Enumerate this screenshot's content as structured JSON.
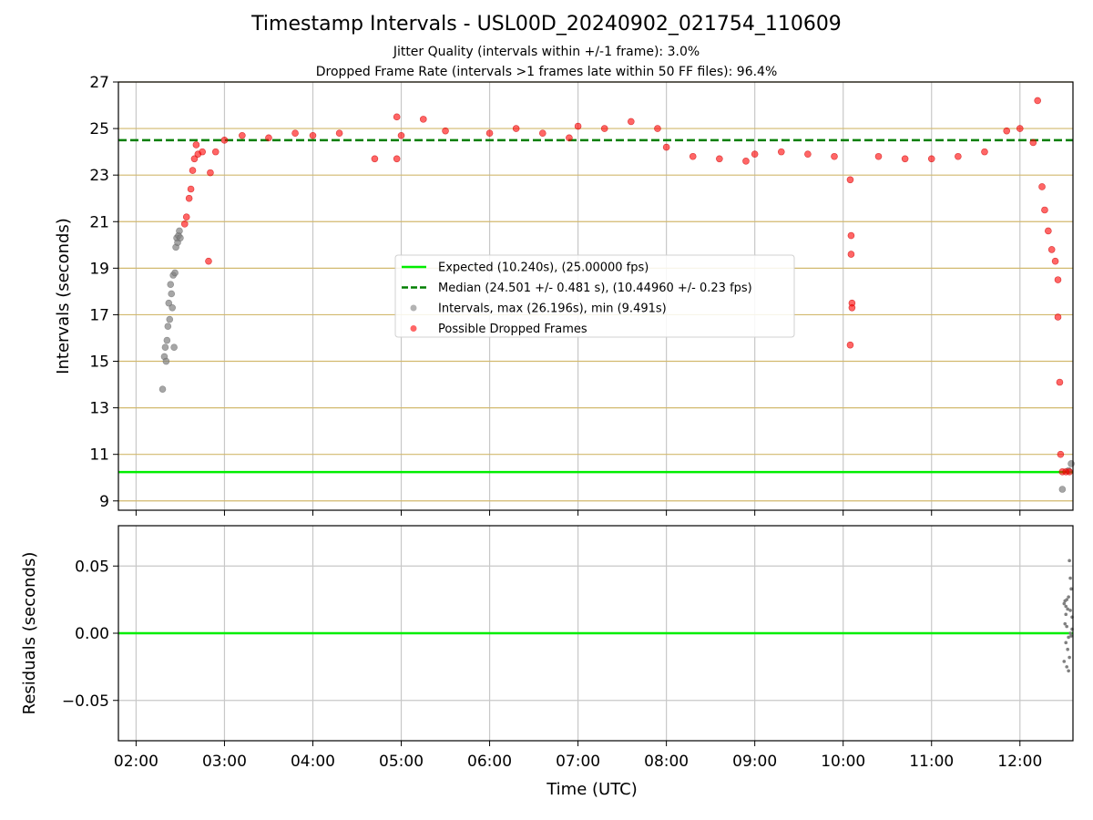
{
  "chart_data": [
    {
      "type": "scatter",
      "title": "Timestamp Intervals - USL00D_20240902_021754_110609",
      "subtitle_1": "Jitter Quality (intervals within +/-1 frame): 3.0%",
      "subtitle_2": "Dropped Frame Rate (intervals >1 frames late within 50 FF files): 96.4%",
      "ylabel": "Intervals (seconds)",
      "ylim": [
        8.6,
        27.0
      ],
      "yticks": [
        "27",
        "25",
        "23",
        "21",
        "19",
        "17",
        "15",
        "13",
        "11",
        "9"
      ],
      "ytick_values": [
        27,
        25,
        23,
        21,
        19,
        17,
        15,
        13,
        11,
        9
      ],
      "xlim_hours": [
        1.8,
        12.6
      ],
      "grid": true,
      "legend_position": "center",
      "legend": [
        {
          "label": "Expected (10.240s), (25.00000 fps)",
          "color": "#00ee00",
          "style": "solid"
        },
        {
          "label": "Median (24.501 +/- 0.481 s), (10.44960 +/- 0.23 fps)",
          "color": "#007f00",
          "style": "dashed"
        },
        {
          "label": "Intervals, max (26.196s), min (9.491s)",
          "color": "#808080",
          "style": "marker"
        },
        {
          "label": "Possible Dropped Frames",
          "color": "#ff0000",
          "style": "marker"
        }
      ],
      "expected_interval": 10.24,
      "median_interval": 24.501,
      "series": [
        {
          "name": "Intervals, max (26.196s), min (9.491s)",
          "color": "#808080",
          "points": [
            [
              2.3,
              13.8
            ],
            [
              2.32,
              15.2
            ],
            [
              2.33,
              15.6
            ],
            [
              2.34,
              15.0
            ],
            [
              2.35,
              15.9
            ],
            [
              2.36,
              16.5
            ],
            [
              2.37,
              17.5
            ],
            [
              2.38,
              16.8
            ],
            [
              2.39,
              18.3
            ],
            [
              2.4,
              17.9
            ],
            [
              2.41,
              17.3
            ],
            [
              2.42,
              18.7
            ],
            [
              2.43,
              15.6
            ],
            [
              2.44,
              18.8
            ],
            [
              2.45,
              19.9
            ],
            [
              2.46,
              20.3
            ],
            [
              2.47,
              20.1
            ],
            [
              2.48,
              20.4
            ],
            [
              2.49,
              20.6
            ],
            [
              2.5,
              20.3
            ],
            [
              12.48,
              9.5
            ],
            [
              12.55,
              10.3
            ],
            [
              12.58,
              10.6
            ]
          ]
        },
        {
          "name": "Possible Dropped Frames",
          "color": "#ff0000",
          "points": [
            [
              2.55,
              20.9
            ],
            [
              2.57,
              21.2
            ],
            [
              2.6,
              22.0
            ],
            [
              2.62,
              22.4
            ],
            [
              2.64,
              23.2
            ],
            [
              2.66,
              23.7
            ],
            [
              2.68,
              24.3
            ],
            [
              2.7,
              23.9
            ],
            [
              2.75,
              24.0
            ],
            [
              2.82,
              19.3
            ],
            [
              2.84,
              23.1
            ],
            [
              2.9,
              24.0
            ],
            [
              3.0,
              24.5
            ],
            [
              3.2,
              24.7
            ],
            [
              3.5,
              24.6
            ],
            [
              3.8,
              24.8
            ],
            [
              4.0,
              24.7
            ],
            [
              4.3,
              24.8
            ],
            [
              4.7,
              23.7
            ],
            [
              4.95,
              23.7
            ],
            [
              4.95,
              25.5
            ],
            [
              5.0,
              24.7
            ],
            [
              5.25,
              25.4
            ],
            [
              5.5,
              24.9
            ],
            [
              6.0,
              24.8
            ],
            [
              6.3,
              25.0
            ],
            [
              6.6,
              24.8
            ],
            [
              6.9,
              24.6
            ],
            [
              7.0,
              25.1
            ],
            [
              7.3,
              25.0
            ],
            [
              7.6,
              25.3
            ],
            [
              7.9,
              25.0
            ],
            [
              8.0,
              24.2
            ],
            [
              8.3,
              23.8
            ],
            [
              8.6,
              23.7
            ],
            [
              8.9,
              23.6
            ],
            [
              9.0,
              23.9
            ],
            [
              9.3,
              24.0
            ],
            [
              9.6,
              23.9
            ],
            [
              9.9,
              23.8
            ],
            [
              10.08,
              22.8
            ],
            [
              10.09,
              20.4
            ],
            [
              10.09,
              19.6
            ],
            [
              10.1,
              17.5
            ],
            [
              10.1,
              17.3
            ],
            [
              10.08,
              15.7
            ],
            [
              10.4,
              23.8
            ],
            [
              10.7,
              23.7
            ],
            [
              11.0,
              23.7
            ],
            [
              11.3,
              23.8
            ],
            [
              11.6,
              24.0
            ],
            [
              11.85,
              24.9
            ],
            [
              12.0,
              25.0
            ],
            [
              12.15,
              24.4
            ],
            [
              12.2,
              26.2
            ],
            [
              12.25,
              22.5
            ],
            [
              12.28,
              21.5
            ],
            [
              12.32,
              20.6
            ],
            [
              12.36,
              19.8
            ],
            [
              12.4,
              19.3
            ],
            [
              12.43,
              18.5
            ],
            [
              12.43,
              16.9
            ],
            [
              12.45,
              14.1
            ],
            [
              12.46,
              11.0
            ],
            [
              12.48,
              10.25
            ],
            [
              12.52,
              10.25
            ],
            [
              12.56,
              10.25
            ]
          ]
        }
      ]
    },
    {
      "type": "scatter",
      "xlabel": "Time (UTC)",
      "ylabel": "Residuals (seconds)",
      "ylim": [
        -0.08,
        0.08
      ],
      "yticks": [
        "0.05",
        "0.00",
        "−0.05"
      ],
      "ytick_values": [
        0.05,
        0.0,
        -0.05
      ],
      "xticks": [
        "02:00",
        "03:00",
        "04:00",
        "05:00",
        "06:00",
        "07:00",
        "08:00",
        "09:00",
        "10:00",
        "11:00",
        "12:00"
      ],
      "xtick_hours": [
        2,
        3,
        4,
        5,
        6,
        7,
        8,
        9,
        10,
        11,
        12
      ],
      "grid": true,
      "zero_line_color": "#00ee00",
      "series": [
        {
          "color": "#808080",
          "points": [
            [
              12.5,
              0.022
            ],
            [
              12.51,
              0.024
            ],
            [
              12.52,
              0.02
            ],
            [
              12.53,
              0.025
            ],
            [
              12.54,
              0.018
            ],
            [
              12.55,
              0.027
            ],
            [
              12.56,
              0.054
            ],
            [
              12.57,
              0.041
            ],
            [
              12.58,
              0.033
            ],
            [
              12.59,
              0.012
            ],
            [
              12.51,
              0.007
            ],
            [
              12.53,
              0.005
            ],
            [
              12.55,
              -0.003
            ],
            [
              12.57,
              0.0
            ],
            [
              12.52,
              -0.007
            ],
            [
              12.54,
              -0.012
            ],
            [
              12.56,
              -0.018
            ],
            [
              12.5,
              -0.021
            ],
            [
              12.53,
              -0.025
            ],
            [
              12.55,
              -0.028
            ],
            [
              12.58,
              -0.002
            ],
            [
              12.59,
              0.003
            ],
            [
              12.52,
              0.014
            ],
            [
              12.57,
              0.017
            ]
          ]
        }
      ]
    }
  ]
}
